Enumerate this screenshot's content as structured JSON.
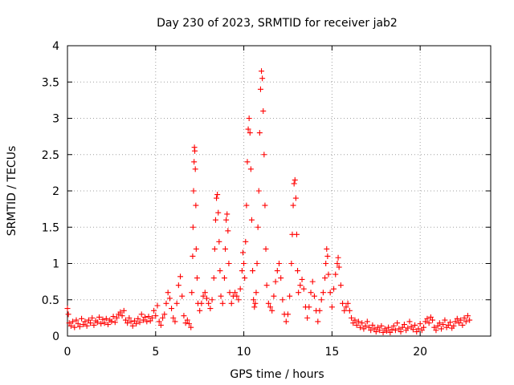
{
  "chart_data": {
    "type": "scatter",
    "title": "Day 230 of 2023, SRMTID for receiver jab2",
    "xlabel": "GPS time / hours",
    "ylabel": "SRMTID / TECUs",
    "xlim": [
      0,
      24
    ],
    "ylim": [
      0,
      4
    ],
    "xticks": [
      0,
      5,
      10,
      15,
      20
    ],
    "yticks": [
      0,
      0.5,
      1,
      1.5,
      2,
      2.5,
      3,
      3.5,
      4
    ],
    "ytick_labels": [
      "0",
      "0.5",
      "1",
      "1.5",
      "2",
      "2.5",
      "3",
      "3.5",
      "4"
    ],
    "grid": true,
    "marker": "+",
    "series": [
      {
        "name": "SRMTID",
        "color": "#ff0000",
        "points": [
          [
            0.0,
            0.38
          ],
          [
            0.05,
            0.3
          ],
          [
            0.1,
            0.18
          ],
          [
            0.2,
            0.14
          ],
          [
            0.3,
            0.2
          ],
          [
            0.4,
            0.12
          ],
          [
            0.5,
            0.22
          ],
          [
            0.6,
            0.17
          ],
          [
            0.7,
            0.13
          ],
          [
            0.8,
            0.24
          ],
          [
            0.9,
            0.16
          ],
          [
            1.0,
            0.2
          ],
          [
            1.1,
            0.14
          ],
          [
            1.2,
            0.22
          ],
          [
            1.3,
            0.18
          ],
          [
            1.4,
            0.25
          ],
          [
            1.5,
            0.15
          ],
          [
            1.6,
            0.21
          ],
          [
            1.7,
            0.19
          ],
          [
            1.8,
            0.26
          ],
          [
            1.9,
            0.17
          ],
          [
            2.0,
            0.23
          ],
          [
            2.1,
            0.18
          ],
          [
            2.2,
            0.24
          ],
          [
            2.3,
            0.16
          ],
          [
            2.4,
            0.22
          ],
          [
            2.5,
            0.2
          ],
          [
            2.6,
            0.27
          ],
          [
            2.7,
            0.19
          ],
          [
            2.8,
            0.25
          ],
          [
            2.9,
            0.3
          ],
          [
            3.0,
            0.33
          ],
          [
            3.1,
            0.28
          ],
          [
            3.2,
            0.35
          ],
          [
            3.3,
            0.22
          ],
          [
            3.4,
            0.18
          ],
          [
            3.5,
            0.25
          ],
          [
            3.6,
            0.2
          ],
          [
            3.7,
            0.14
          ],
          [
            3.8,
            0.21
          ],
          [
            3.9,
            0.17
          ],
          [
            4.0,
            0.24
          ],
          [
            4.1,
            0.19
          ],
          [
            4.2,
            0.3
          ],
          [
            4.3,
            0.22
          ],
          [
            4.4,
            0.26
          ],
          [
            4.5,
            0.2
          ],
          [
            4.6,
            0.27
          ],
          [
            4.7,
            0.21
          ],
          [
            4.8,
            0.25
          ],
          [
            4.9,
            0.35
          ],
          [
            5.0,
            0.28
          ],
          [
            5.1,
            0.42
          ],
          [
            5.2,
            0.2
          ],
          [
            5.3,
            0.15
          ],
          [
            5.4,
            0.25
          ],
          [
            5.5,
            0.3
          ],
          [
            5.6,
            0.45
          ],
          [
            5.7,
            0.6
          ],
          [
            5.8,
            0.52
          ],
          [
            5.9,
            0.38
          ],
          [
            6.0,
            0.25
          ],
          [
            6.1,
            0.2
          ],
          [
            6.2,
            0.45
          ],
          [
            6.3,
            0.7
          ],
          [
            6.4,
            0.82
          ],
          [
            6.5,
            0.55
          ],
          [
            6.6,
            0.28
          ],
          [
            6.7,
            0.18
          ],
          [
            6.8,
            0.22
          ],
          [
            6.9,
            0.17
          ],
          [
            7.0,
            0.12
          ],
          [
            7.05,
            0.6
          ],
          [
            7.1,
            1.1
          ],
          [
            7.12,
            1.5
          ],
          [
            7.15,
            2.0
          ],
          [
            7.18,
            2.4
          ],
          [
            7.2,
            2.6
          ],
          [
            7.22,
            2.55
          ],
          [
            7.25,
            2.3
          ],
          [
            7.28,
            1.8
          ],
          [
            7.3,
            1.2
          ],
          [
            7.35,
            0.8
          ],
          [
            7.4,
            0.45
          ],
          [
            7.5,
            0.35
          ],
          [
            7.6,
            0.45
          ],
          [
            7.7,
            0.55
          ],
          [
            7.8,
            0.6
          ],
          [
            7.9,
            0.52
          ],
          [
            8.0,
            0.45
          ],
          [
            8.1,
            0.38
          ],
          [
            8.2,
            0.5
          ],
          [
            8.3,
            0.8
          ],
          [
            8.35,
            1.2
          ],
          [
            8.4,
            1.6
          ],
          [
            8.45,
            1.9
          ],
          [
            8.5,
            1.95
          ],
          [
            8.55,
            1.7
          ],
          [
            8.6,
            1.3
          ],
          [
            8.65,
            0.9
          ],
          [
            8.7,
            0.55
          ],
          [
            8.8,
            0.45
          ],
          [
            8.9,
            0.8
          ],
          [
            8.95,
            1.2
          ],
          [
            9.0,
            1.6
          ],
          [
            9.05,
            1.68
          ],
          [
            9.1,
            1.45
          ],
          [
            9.15,
            1.0
          ],
          [
            9.2,
            0.6
          ],
          [
            9.3,
            0.45
          ],
          [
            9.4,
            0.55
          ],
          [
            9.5,
            0.6
          ],
          [
            9.6,
            0.55
          ],
          [
            9.7,
            0.5
          ],
          [
            9.8,
            0.65
          ],
          [
            9.9,
            0.9
          ],
          [
            9.95,
            1.15
          ],
          [
            10.0,
            1.0
          ],
          [
            10.05,
            0.8
          ],
          [
            10.1,
            1.3
          ],
          [
            10.15,
            1.8
          ],
          [
            10.2,
            2.4
          ],
          [
            10.25,
            2.85
          ],
          [
            10.3,
            3.0
          ],
          [
            10.35,
            2.8
          ],
          [
            10.4,
            2.3
          ],
          [
            10.45,
            1.6
          ],
          [
            10.5,
            0.9
          ],
          [
            10.55,
            0.5
          ],
          [
            10.6,
            0.4
          ],
          [
            10.65,
            0.45
          ],
          [
            10.7,
            0.6
          ],
          [
            10.75,
            1.0
          ],
          [
            10.8,
            1.5
          ],
          [
            10.85,
            2.0
          ],
          [
            10.9,
            2.8
          ],
          [
            10.95,
            3.4
          ],
          [
            11.0,
            3.65
          ],
          [
            11.05,
            3.55
          ],
          [
            11.1,
            3.1
          ],
          [
            11.15,
            2.5
          ],
          [
            11.2,
            1.8
          ],
          [
            11.25,
            1.2
          ],
          [
            11.3,
            0.7
          ],
          [
            11.4,
            0.45
          ],
          [
            11.5,
            0.4
          ],
          [
            11.6,
            0.35
          ],
          [
            11.7,
            0.55
          ],
          [
            11.8,
            0.75
          ],
          [
            11.9,
            0.9
          ],
          [
            12.0,
            1.0
          ],
          [
            12.1,
            0.8
          ],
          [
            12.2,
            0.5
          ],
          [
            12.3,
            0.3
          ],
          [
            12.4,
            0.2
          ],
          [
            12.5,
            0.3
          ],
          [
            12.6,
            0.55
          ],
          [
            12.7,
            1.0
          ],
          [
            12.75,
            1.4
          ],
          [
            12.8,
            1.8
          ],
          [
            12.85,
            2.1
          ],
          [
            12.9,
            2.15
          ],
          [
            12.95,
            1.9
          ],
          [
            13.0,
            1.4
          ],
          [
            13.05,
            0.9
          ],
          [
            13.1,
            0.6
          ],
          [
            13.2,
            0.7
          ],
          [
            13.3,
            0.78
          ],
          [
            13.4,
            0.65
          ],
          [
            13.5,
            0.4
          ],
          [
            13.6,
            0.25
          ],
          [
            13.7,
            0.4
          ],
          [
            13.8,
            0.6
          ],
          [
            13.9,
            0.75
          ],
          [
            14.0,
            0.55
          ],
          [
            14.1,
            0.35
          ],
          [
            14.2,
            0.2
          ],
          [
            14.3,
            0.35
          ],
          [
            14.4,
            0.5
          ],
          [
            14.5,
            0.6
          ],
          [
            14.6,
            0.8
          ],
          [
            14.65,
            1.0
          ],
          [
            14.7,
            1.2
          ],
          [
            14.75,
            1.1
          ],
          [
            14.8,
            0.85
          ],
          [
            14.9,
            0.6
          ],
          [
            15.0,
            0.4
          ],
          [
            15.1,
            0.65
          ],
          [
            15.2,
            0.85
          ],
          [
            15.3,
            1.0
          ],
          [
            15.35,
            1.08
          ],
          [
            15.4,
            0.95
          ],
          [
            15.5,
            0.7
          ],
          [
            15.6,
            0.45
          ],
          [
            15.7,
            0.35
          ],
          [
            15.8,
            0.4
          ],
          [
            15.9,
            0.45
          ],
          [
            16.0,
            0.35
          ],
          [
            16.1,
            0.25
          ],
          [
            16.2,
            0.18
          ],
          [
            16.3,
            0.22
          ],
          [
            16.4,
            0.15
          ],
          [
            16.5,
            0.2
          ],
          [
            16.6,
            0.12
          ],
          [
            16.7,
            0.18
          ],
          [
            16.8,
            0.1
          ],
          [
            16.9,
            0.14
          ],
          [
            17.0,
            0.2
          ],
          [
            17.1,
            0.12
          ],
          [
            17.2,
            0.08
          ],
          [
            17.3,
            0.15
          ],
          [
            17.4,
            0.1
          ],
          [
            17.5,
            0.06
          ],
          [
            17.6,
            0.12
          ],
          [
            17.7,
            0.08
          ],
          [
            17.8,
            0.14
          ],
          [
            17.9,
            0.05
          ],
          [
            18.0,
            0.1
          ],
          [
            18.1,
            0.07
          ],
          [
            18.2,
            0.12
          ],
          [
            18.3,
            0.05
          ],
          [
            18.4,
            0.09
          ],
          [
            18.5,
            0.14
          ],
          [
            18.6,
            0.08
          ],
          [
            18.7,
            0.18
          ],
          [
            18.8,
            0.1
          ],
          [
            18.9,
            0.06
          ],
          [
            19.0,
            0.12
          ],
          [
            19.1,
            0.16
          ],
          [
            19.2,
            0.08
          ],
          [
            19.3,
            0.11
          ],
          [
            19.4,
            0.2
          ],
          [
            19.5,
            0.13
          ],
          [
            19.6,
            0.09
          ],
          [
            19.7,
            0.15
          ],
          [
            19.8,
            0.06
          ],
          [
            19.9,
            0.1
          ],
          [
            20.0,
            0.17
          ],
          [
            20.1,
            0.08
          ],
          [
            20.2,
            0.12
          ],
          [
            20.3,
            0.2
          ],
          [
            20.4,
            0.24
          ],
          [
            20.5,
            0.18
          ],
          [
            20.6,
            0.26
          ],
          [
            20.7,
            0.22
          ],
          [
            20.8,
            0.12
          ],
          [
            20.9,
            0.08
          ],
          [
            21.0,
            0.14
          ],
          [
            21.1,
            0.18
          ],
          [
            21.2,
            0.1
          ],
          [
            21.3,
            0.16
          ],
          [
            21.4,
            0.22
          ],
          [
            21.5,
            0.12
          ],
          [
            21.6,
            0.15
          ],
          [
            21.7,
            0.19
          ],
          [
            21.8,
            0.11
          ],
          [
            21.9,
            0.14
          ],
          [
            22.0,
            0.2
          ],
          [
            22.1,
            0.24
          ],
          [
            22.2,
            0.18
          ],
          [
            22.3,
            0.22
          ],
          [
            22.4,
            0.15
          ],
          [
            22.5,
            0.25
          ],
          [
            22.6,
            0.2
          ],
          [
            22.7,
            0.28
          ],
          [
            22.8,
            0.22
          ]
        ]
      }
    ]
  }
}
